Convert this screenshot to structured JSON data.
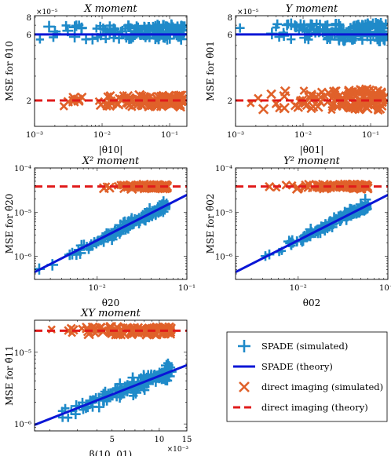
{
  "colors": {
    "spade_sim": "#1f8ac9",
    "spade_theory": "#0a16d6",
    "direct_sim": "#e0612a",
    "direct_theory": "#e01b1b"
  },
  "legend": {
    "entries": [
      "SPADE (simulated)",
      "SPADE (theory)",
      "direct imaging (simulated)",
      "direct imaging (theory)"
    ]
  },
  "chart_data": [
    {
      "type": "scatter",
      "title": "X moment",
      "xlabel": "|θ10|",
      "ylabel": "MSE for θ̂10",
      "xscale": "log",
      "yscale": "log",
      "xlim": [
        0.001,
        0.18
      ],
      "ylim": [
        1.3e-05,
        8.2e-05
      ],
      "exponent_label": "×10⁻⁵",
      "xticks": [
        {
          "v": 0.001,
          "label": "10⁻³"
        },
        {
          "v": 0.01,
          "label": "10⁻²"
        },
        {
          "v": 0.1,
          "label": "10⁻¹"
        }
      ],
      "yticks": [
        {
          "v": 2e-05,
          "label": "2"
        },
        {
          "v": 6e-05,
          "label": "6"
        },
        {
          "v": 8e-05,
          "label": "8"
        }
      ],
      "series": [
        {
          "name": "SPADE (simulated)",
          "kind": "plus",
          "x_range": [
            0.001,
            0.17
          ],
          "y": [
            5.5e-05,
            7.1e-05
          ]
        },
        {
          "name": "SPADE (theory)",
          "kind": "line",
          "x": [
            0.001,
            0.18
          ],
          "y": [
            6e-05,
            6e-05
          ]
        },
        {
          "name": "direct imaging (simulated)",
          "kind": "cross",
          "x_range": [
            0.002,
            0.16
          ],
          "y": [
            1.8e-05,
            2.2e-05
          ]
        },
        {
          "name": "direct imaging (theory)",
          "kind": "dash",
          "x": [
            0.001,
            0.18
          ],
          "y": [
            2e-05,
            2e-05
          ]
        }
      ]
    },
    {
      "type": "scatter",
      "title": "Y moment",
      "xlabel": "|θ01|",
      "ylabel": "MSE for θ̂01",
      "xscale": "log",
      "yscale": "log",
      "xlim": [
        0.001,
        0.18
      ],
      "ylim": [
        1.3e-05,
        8.2e-05
      ],
      "exponent_label": "×10⁻⁵",
      "xticks": [
        {
          "v": 0.001,
          "label": "10⁻³"
        },
        {
          "v": 0.01,
          "label": "10⁻²"
        },
        {
          "v": 0.1,
          "label": "10⁻¹"
        }
      ],
      "yticks": [
        {
          "v": 2e-05,
          "label": "2"
        },
        {
          "v": 6e-05,
          "label": "6"
        },
        {
          "v": 8e-05,
          "label": "8"
        }
      ],
      "series": [
        {
          "name": "SPADE (simulated)",
          "kind": "plus",
          "x_range": [
            0.001,
            0.17
          ],
          "y": [
            5.4e-05,
            7.2e-05
          ]
        },
        {
          "name": "SPADE (theory)",
          "kind": "line",
          "x": [
            0.001,
            0.18
          ],
          "y": [
            6e-05,
            6e-05
          ]
        },
        {
          "name": "direct imaging (simulated)",
          "kind": "cross",
          "x_range": [
            0.0012,
            0.16
          ],
          "y": [
            1.7e-05,
            2.4e-05
          ]
        },
        {
          "name": "direct imaging (theory)",
          "kind": "dash",
          "x": [
            0.001,
            0.18
          ],
          "y": [
            2e-05,
            2e-05
          ]
        }
      ]
    },
    {
      "type": "scatter",
      "title": "X² moment",
      "xlabel": "θ20",
      "ylabel": "MSE for θ̂20",
      "xscale": "log",
      "yscale": "log",
      "xlim": [
        0.002,
        0.1
      ],
      "ylim": [
        3e-07,
        0.0001
      ],
      "exponent_label": "",
      "xticks": [
        {
          "v": 0.01,
          "label": "10⁻²"
        },
        {
          "v": 0.1,
          "label": "10⁻¹"
        }
      ],
      "yticks": [
        {
          "v": 1e-06,
          "label": "10⁻⁶"
        },
        {
          "v": 1e-05,
          "label": "10⁻⁵"
        },
        {
          "v": 0.0001,
          "label": "10⁻⁴"
        }
      ],
      "series": [
        {
          "name": "SPADE (simulated)",
          "kind": "plus",
          "x_range": [
            0.0022,
            0.06
          ],
          "fit": [
            4.4e-07,
            0.0022,
            2.45e-05,
            0.1
          ]
        },
        {
          "name": "SPADE (theory)",
          "kind": "line",
          "x": [
            0.002,
            0.1
          ],
          "y": [
            4.4e-07,
            2.45e-05
          ]
        },
        {
          "name": "direct imaging (simulated)",
          "kind": "cross",
          "x_range": [
            0.011,
            0.06
          ],
          "y": [
            3.4e-05,
            4.2e-05
          ]
        },
        {
          "name": "direct imaging (theory)",
          "kind": "dash",
          "x": [
            0.002,
            0.1
          ],
          "y": [
            3.8e-05,
            3.8e-05
          ]
        }
      ]
    },
    {
      "type": "scatter",
      "title": "Y² moment",
      "xlabel": "θ02",
      "ylabel": "MSE for θ̂02",
      "xscale": "log",
      "yscale": "log",
      "xlim": [
        0.002,
        0.1
      ],
      "ylim": [
        3e-07,
        0.0001
      ],
      "exponent_label": "",
      "xticks": [
        {
          "v": 0.01,
          "label": "10⁻²"
        },
        {
          "v": 0.1,
          "label": "10⁻¹"
        }
      ],
      "yticks": [
        {
          "v": 1e-06,
          "label": "10⁻⁶"
        },
        {
          "v": 1e-05,
          "label": "10⁻⁵"
        },
        {
          "v": 0.0001,
          "label": "10⁻⁴"
        }
      ],
      "series": [
        {
          "name": "SPADE (simulated)",
          "kind": "plus",
          "x_range": [
            0.0029,
            0.06
          ],
          "fit": [
            4.4e-07,
            0.002,
            2.45e-05,
            0.1
          ]
        },
        {
          "name": "SPADE (theory)",
          "kind": "line",
          "x": [
            0.002,
            0.1
          ],
          "y": [
            4.4e-07,
            2.45e-05
          ]
        },
        {
          "name": "direct imaging (simulated)",
          "kind": "cross",
          "x_range": [
            0.0045,
            0.06
          ],
          "y": [
            3.4e-05,
            4.2e-05
          ]
        },
        {
          "name": "direct imaging (theory)",
          "kind": "dash",
          "x": [
            0.002,
            0.1
          ],
          "y": [
            3.8e-05,
            3.8e-05
          ]
        }
      ]
    },
    {
      "type": "scatter",
      "title": "XY moment",
      "xlabel": "β(10, 01)",
      "ylabel": "MSE for θ̂11",
      "xscale": "log",
      "yscale": "log",
      "xlim": [
        0.0016,
        0.015
      ],
      "ylim": [
        8e-07,
        2.8e-05
      ],
      "exponent_label": "×10⁻³",
      "xticks": [
        {
          "v": 0.005,
          "label": "5"
        },
        {
          "v": 0.01,
          "label": "10"
        },
        {
          "v": 0.015,
          "label": "15"
        }
      ],
      "yticks": [
        {
          "v": 1e-06,
          "label": "10⁻⁶"
        },
        {
          "v": 1e-05,
          "label": "10⁻⁵"
        }
      ],
      "series": [
        {
          "name": "SPADE (simulated)",
          "kind": "plus",
          "x_range": [
            0.0017,
            0.012
          ],
          "fit": [
            9.7e-07,
            0.0016,
            6.6e-06,
            0.015
          ]
        },
        {
          "name": "SPADE (theory)",
          "kind": "line",
          "x": [
            0.0016,
            0.015
          ],
          "y": [
            9.7e-07,
            6.6e-06
          ]
        },
        {
          "name": "direct imaging (simulated)",
          "kind": "cross",
          "x_range": [
            0.0017,
            0.012
          ],
          "y": [
            1.75e-05,
            2.25e-05
          ]
        },
        {
          "name": "direct imaging (theory)",
          "kind": "dash",
          "x": [
            0.0016,
            0.015
          ],
          "y": [
            2e-05,
            2e-05
          ]
        }
      ]
    }
  ]
}
